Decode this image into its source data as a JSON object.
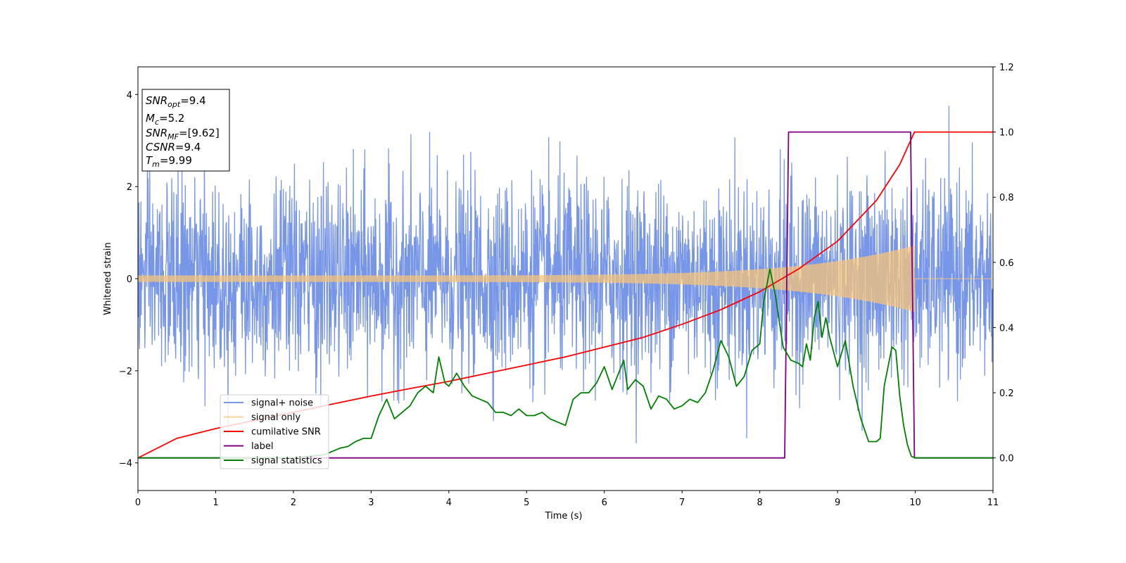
{
  "chart_data": {
    "type": "line",
    "xlabel": "Time (s)",
    "ylabel_left": "Whitened strain",
    "ylabel_right": "",
    "xlim": [
      0,
      11
    ],
    "ylim_left": [
      -4.6,
      4.6
    ],
    "ylim_right": [
      -0.1,
      1.2
    ],
    "x_ticks": [
      0,
      1,
      2,
      3,
      4,
      5,
      6,
      7,
      8,
      9,
      10,
      11
    ],
    "y_ticks_left": [
      -4,
      -2,
      0,
      2,
      4
    ],
    "y_ticks_right": [
      0.0,
      0.2,
      0.4,
      0.6,
      0.8,
      1.0,
      1.2
    ],
    "y_ticks_right_labels": [
      "0.0",
      "0.2",
      "0.4",
      "0.6",
      "0.8",
      "1.0",
      "1.2"
    ],
    "legend_position": "lower-left",
    "info_box": {
      "lines": [
        {
          "main": "SNR",
          "sub": "opt",
          "value": "=9.4"
        },
        {
          "main": "M",
          "sub": "c",
          "value": "=5.2"
        },
        {
          "main": "SNR",
          "sub": "MF",
          "value": "=[9.62]"
        },
        {
          "main": "CSNR",
          "sub": "",
          "value": "=9.4"
        },
        {
          "main": "T",
          "sub": "m",
          "value": "=9.99"
        }
      ]
    },
    "series": [
      {
        "name": "signal+ noise",
        "axis": "left",
        "color": "#7896e8",
        "kind": "noise",
        "sigma": 1.05,
        "x_range": [
          0,
          11
        ]
      },
      {
        "name": "signal only",
        "axis": "left",
        "color": "#f5c37a",
        "kind": "chirp",
        "amplitude_start": 0.07,
        "amplitude_end": 0.72,
        "merger_time": 9.99,
        "x_range": [
          0,
          11
        ]
      },
      {
        "name": "cumilative SNR",
        "axis": "right",
        "color": "#ff0000",
        "x": [
          0,
          0.5,
          1,
          1.5,
          2,
          2.5,
          3,
          3.5,
          4,
          4.5,
          5,
          5.5,
          6,
          6.5,
          7,
          7.5,
          8,
          8.5,
          9,
          9.5,
          9.8,
          9.99,
          10.0,
          11
        ],
        "y": [
          0.0,
          0.06,
          0.09,
          0.115,
          0.14,
          0.165,
          0.19,
          0.213,
          0.235,
          0.26,
          0.285,
          0.31,
          0.34,
          0.37,
          0.41,
          0.455,
          0.51,
          0.58,
          0.665,
          0.79,
          0.9,
          1.0,
          1.0,
          1.0
        ]
      },
      {
        "name": "label",
        "axis": "right",
        "color": "#800080",
        "x": [
          0,
          8.32,
          8.37,
          9.94,
          9.99,
          11
        ],
        "y": [
          0,
          0,
          1,
          1,
          0,
          0
        ]
      },
      {
        "name": "signal statistics",
        "axis": "right",
        "color": "#008000",
        "x": [
          0,
          0.5,
          1,
          1.5,
          2,
          2.2,
          2.4,
          2.5,
          2.6,
          2.7,
          2.8,
          2.9,
          3.0,
          3.1,
          3.2,
          3.3,
          3.4,
          3.5,
          3.6,
          3.7,
          3.8,
          3.87,
          3.95,
          4.0,
          4.1,
          4.2,
          4.3,
          4.4,
          4.5,
          4.6,
          4.7,
          4.8,
          4.9,
          5.0,
          5.1,
          5.2,
          5.3,
          5.4,
          5.5,
          5.6,
          5.7,
          5.8,
          5.9,
          6.0,
          6.1,
          6.2,
          6.25,
          6.3,
          6.4,
          6.5,
          6.6,
          6.7,
          6.8,
          6.9,
          7.0,
          7.1,
          7.2,
          7.3,
          7.4,
          7.5,
          7.6,
          7.7,
          7.8,
          7.9,
          8.0,
          8.05,
          8.13,
          8.2,
          8.3,
          8.4,
          8.5,
          8.55,
          8.6,
          8.65,
          8.7,
          8.75,
          8.8,
          8.85,
          8.9,
          9.0,
          9.1,
          9.15,
          9.2,
          9.3,
          9.4,
          9.5,
          9.55,
          9.6,
          9.7,
          9.75,
          9.8,
          9.85,
          9.9,
          9.95,
          10.0,
          10.1,
          10.3,
          10.5,
          11
        ],
        "y": [
          0.0,
          0.0,
          0.0,
          0.0,
          0.0,
          0.005,
          0.01,
          0.02,
          0.03,
          0.035,
          0.05,
          0.06,
          0.06,
          0.13,
          0.18,
          0.12,
          0.14,
          0.16,
          0.2,
          0.22,
          0.2,
          0.31,
          0.23,
          0.22,
          0.26,
          0.22,
          0.19,
          0.18,
          0.17,
          0.14,
          0.14,
          0.13,
          0.15,
          0.13,
          0.13,
          0.14,
          0.12,
          0.11,
          0.1,
          0.18,
          0.2,
          0.2,
          0.23,
          0.28,
          0.21,
          0.27,
          0.3,
          0.21,
          0.24,
          0.22,
          0.15,
          0.19,
          0.18,
          0.15,
          0.16,
          0.18,
          0.17,
          0.2,
          0.27,
          0.36,
          0.31,
          0.22,
          0.25,
          0.33,
          0.35,
          0.48,
          0.58,
          0.5,
          0.34,
          0.3,
          0.29,
          0.28,
          0.35,
          0.3,
          0.43,
          0.48,
          0.37,
          0.43,
          0.37,
          0.28,
          0.36,
          0.29,
          0.22,
          0.12,
          0.05,
          0.05,
          0.06,
          0.22,
          0.34,
          0.33,
          0.19,
          0.1,
          0.04,
          0.005,
          0.0,
          0.0,
          0.0,
          0.0,
          0.0
        ]
      }
    ]
  }
}
